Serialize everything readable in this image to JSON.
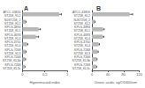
{
  "chart_data": [
    {
      "type": "bar",
      "orientation": "horizontal",
      "title": "A",
      "xlabel": "Hypermucoid index",
      "categories": [
        "ATCC 43816\nST258_KL2",
        "NJST258_2\nST258_KL2",
        "KPLS-4894\nST258_KL1",
        "KPLS-4693\nST258_KL4",
        "KPLS-4750\nST258_KL4",
        "KPLS-7268\nST258_KL3",
        "KPLS-7268\nST258_KL3b",
        "KPLS-7268\nST258_KL3c"
      ],
      "values": [
        0.82,
        0.07,
        0.36,
        0.3,
        0.1,
        0.07,
        0.06,
        0.05
      ],
      "errors": [
        0.05,
        0.01,
        0.04,
        0.06,
        0.02,
        0.01,
        0.01,
        0.005
      ],
      "xlim": [
        0,
        1.0
      ],
      "xticks": [
        0,
        0.5,
        1.0
      ],
      "color": "#b8b8b8",
      "grid": false
    },
    {
      "type": "bar",
      "orientation": "horizontal",
      "title": "B",
      "xlabel": "Uronic acids, ug/OD600nm",
      "categories": [
        "ATCC 43816\nST258_KL2",
        "NJST258_2\nST258_KL2",
        "KPLS-4894\nST258_KL1",
        "KPLS-4693\nST258_KL4",
        "KPLS-4750\nST258_KL4",
        "KPLS-7268\nST258_KL3",
        "KPLS-7268\nST258_KL3b",
        "KPLS-7268\nST258_KL3c"
      ],
      "values": [
        95,
        7,
        28,
        27,
        17,
        14,
        12,
        11
      ],
      "errors": [
        8,
        0.5,
        3,
        3,
        2,
        2,
        1,
        1
      ],
      "xlim": [
        0,
        120
      ],
      "xticks": [
        0,
        40,
        80,
        120
      ],
      "color": "#b8b8b8",
      "grid": false
    }
  ]
}
